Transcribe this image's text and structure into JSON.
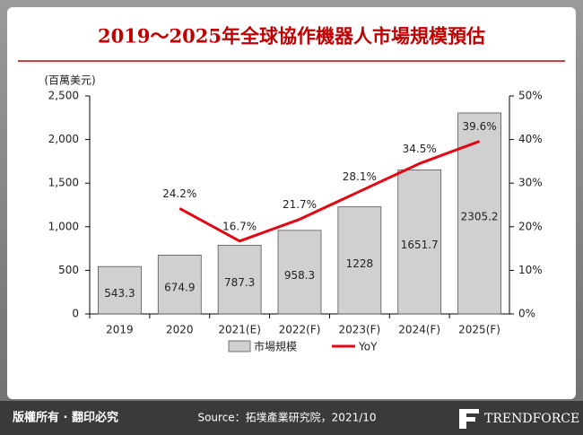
{
  "chart_data": {
    "type": "bar_line",
    "title": "2019～2025年全球協作機器人市場規模預估",
    "y_label": "(百萬美元)",
    "categories": [
      "2019",
      "2020",
      "2021(E)",
      "2022(F)",
      "2023(F)",
      "2024(F)",
      "2025(F)"
    ],
    "series": [
      {
        "name": "市場規模",
        "color": "#d0d0d0",
        "values": [
          543.3,
          674.9,
          787.3,
          958.3,
          1228,
          1651.7,
          2305.2
        ]
      },
      {
        "name": "YoY",
        "color": "#e30613",
        "axis": "y2",
        "values": [
          null,
          24.2,
          16.7,
          21.7,
          28.1,
          34.5,
          39.6
        ],
        "value_labels": [
          null,
          "24.2%",
          "16.7%",
          "21.7%",
          "28.1%",
          "34.5%",
          "39.6%"
        ]
      }
    ],
    "ylim": [
      0,
      2500
    ],
    "yticks": [
      0,
      500,
      {
        "value": 1000,
        "label": "1,000"
      },
      {
        "value": 1500,
        "label": "1,500"
      },
      {
        "value": 2000,
        "label": "2,000"
      },
      {
        "value": 2500,
        "label": "2,500"
      }
    ],
    "y2lim": [
      0,
      50
    ],
    "y2ticks": [
      {
        "value": 0,
        "label": "0%"
      },
      {
        "value": 10,
        "label": "10%"
      },
      {
        "value": 20,
        "label": "20%"
      },
      {
        "value": 30,
        "label": "30%"
      },
      {
        "value": 40,
        "label": "40%"
      },
      {
        "value": 50,
        "label": "50%"
      }
    ]
  },
  "footer": {
    "copyright": "版權所有 · 翻印必究",
    "source": "Source：拓墣產業研究院，2021/10",
    "brand": "TRENDFORCE"
  }
}
